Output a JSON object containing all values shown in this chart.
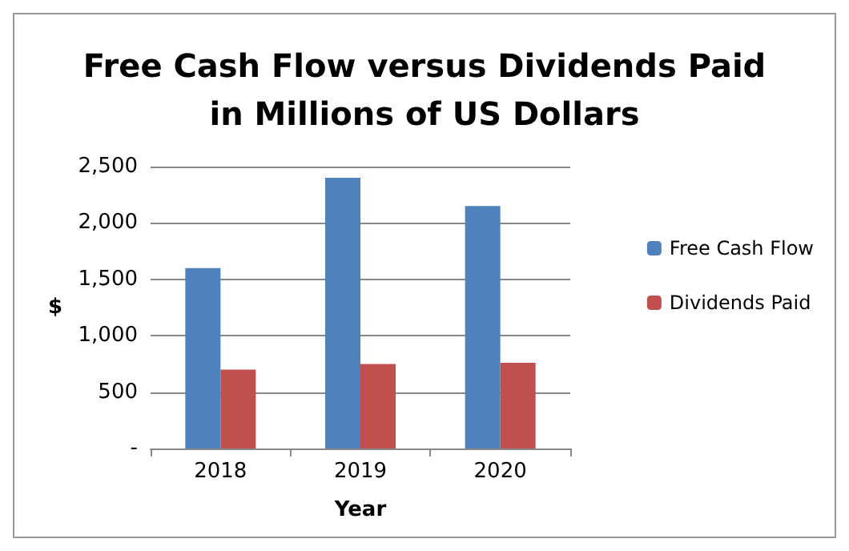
{
  "chart_data": {
    "type": "bar",
    "title": "Free Cash Flow versus Dividends Paid\nin Millions of US Dollars",
    "xlabel": "Year",
    "ylabel": "$",
    "categories": [
      "2018",
      "2019",
      "2020"
    ],
    "series": [
      {
        "name": "Free Cash Flow",
        "color": "#4f81bd",
        "values": [
          1600,
          2400,
          2150
        ]
      },
      {
        "name": "Dividends Paid",
        "color": "#c0504d",
        "values": [
          700,
          750,
          760
        ]
      }
    ],
    "ylim": [
      0,
      2500
    ],
    "yticks": [
      {
        "value": 0,
        "label": "-"
      },
      {
        "value": 500,
        "label": "500"
      },
      {
        "value": 1000,
        "label": "1,000"
      },
      {
        "value": 1500,
        "label": "1,500"
      },
      {
        "value": 2000,
        "label": "2,000"
      },
      {
        "value": 2500,
        "label": "2,500"
      }
    ],
    "grid": "y",
    "legend": "right"
  }
}
